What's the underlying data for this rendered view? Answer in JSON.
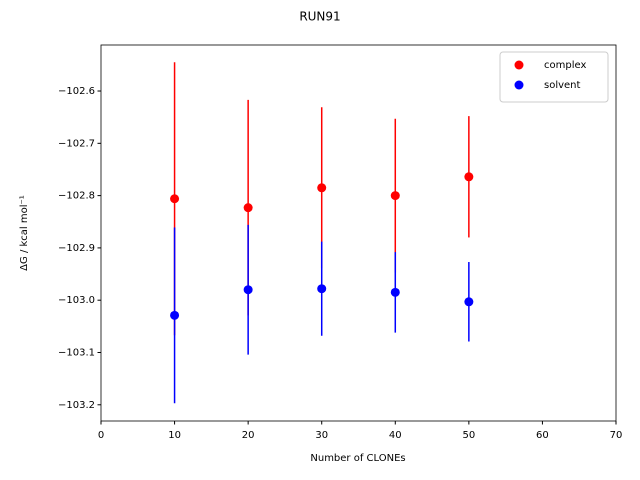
{
  "chart_data": {
    "type": "errorbar",
    "title": "RUN91",
    "xlabel": "Number of CLONEs",
    "ylabel": "ΔG / kcal mol⁻¹",
    "x": [
      10,
      20,
      30,
      40,
      50
    ],
    "series": [
      {
        "name": "complex",
        "color": "#ff0000",
        "values": [
          -102.806,
          -102.823,
          -102.785,
          -102.8,
          -102.764
        ],
        "errors": [
          0.261,
          0.206,
          0.154,
          0.147,
          0.116
        ]
      },
      {
        "name": "solvent",
        "color": "#0000ff",
        "values": [
          -103.029,
          -102.98,
          -102.978,
          -102.985,
          -103.003
        ],
        "errors": [
          0.168,
          0.124,
          0.09,
          0.077,
          0.076
        ]
      }
    ],
    "xlim": [
      0,
      70
    ],
    "xticks": [
      0,
      10,
      20,
      30,
      40,
      50,
      60,
      70
    ],
    "ylim": [
      -103.231,
      -102.512
    ],
    "yticks": [
      {
        "value": -102.6,
        "label": "−102.6"
      },
      {
        "value": -102.7,
        "label": "−102.7"
      },
      {
        "value": -102.8,
        "label": "−102.8"
      },
      {
        "value": -102.9,
        "label": "−102.9"
      },
      {
        "value": -103.0,
        "label": "−103.0"
      },
      {
        "value": -103.1,
        "label": "−103.1"
      },
      {
        "value": -103.2,
        "label": "−103.2"
      }
    ],
    "legend": "upper right",
    "grid": false
  }
}
